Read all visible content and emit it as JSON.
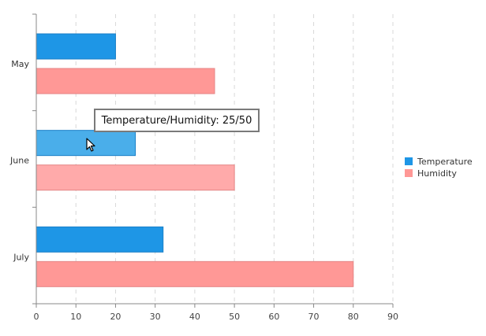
{
  "chart_data": {
    "type": "bar",
    "orientation": "horizontal",
    "categories": [
      "May",
      "June",
      "July"
    ],
    "series": [
      {
        "name": "Temperature",
        "values": [
          20,
          25,
          32
        ],
        "color": "#1e96e6"
      },
      {
        "name": "Humidity",
        "values": [
          45,
          50,
          80
        ],
        "color": "#ff9896"
      }
    ],
    "xlim": [
      0,
      90
    ],
    "xticks": [
      0,
      10,
      20,
      30,
      40,
      50,
      60,
      70,
      80,
      90
    ],
    "grid": true,
    "legend_position": "right",
    "highlight": {
      "category": "June",
      "color_temperature": "#4aaeea",
      "color_humidity": "#ffaaaa"
    }
  },
  "tooltip": {
    "text": "Temperature/Humidity: 25/50"
  },
  "cursor": {
    "icon": "pointer-cursor-icon"
  }
}
